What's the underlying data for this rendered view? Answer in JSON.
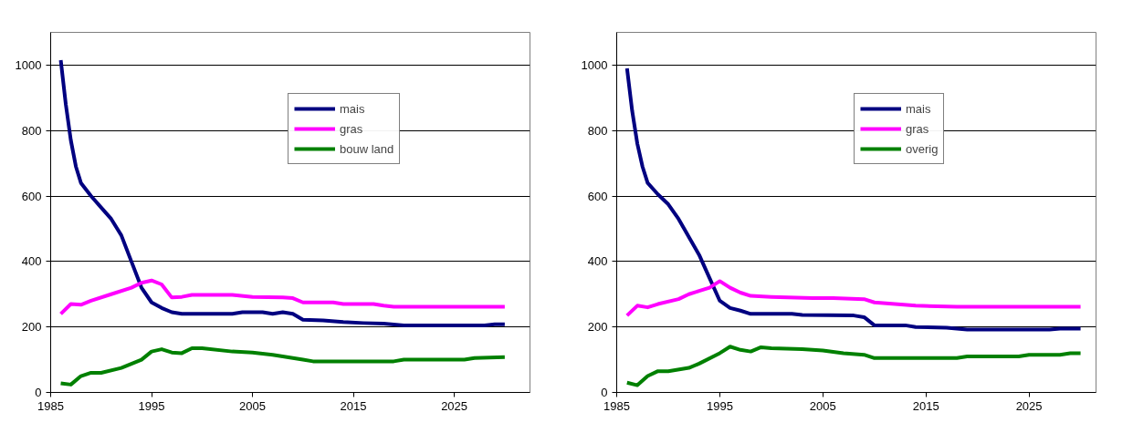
{
  "chart_data": [
    {
      "type": "line",
      "xlim": [
        1985,
        2032.5
      ],
      "xticks": [
        1985,
        1995,
        2005,
        2015,
        2025
      ],
      "ylim": [
        0,
        1100
      ],
      "yticks": [
        0,
        200,
        400,
        600,
        800,
        1000
      ],
      "grid": "y",
      "legend": "top right",
      "series": [
        {
          "name": "mais",
          "color": "#000080",
          "x": [
            1986,
            1986.5,
            1987,
            1987.5,
            1988,
            1989,
            1990,
            1991,
            1992,
            1993,
            1994,
            1995,
            1996,
            1997,
            1998,
            2003,
            2004,
            2006,
            2007,
            2008,
            2009,
            2010,
            2012,
            2014,
            2016,
            2018,
            2020,
            2028,
            2029,
            2030
          ],
          "values": [
            1015,
            880,
            770,
            690,
            640,
            600,
            565,
            530,
            480,
            400,
            320,
            275,
            258,
            245,
            240,
            240,
            245,
            245,
            240,
            245,
            240,
            222,
            220,
            215,
            212,
            210,
            205,
            205,
            208,
            208
          ]
        },
        {
          "name": "gras",
          "color": "#ff00ff",
          "x": [
            1986,
            1987,
            1988,
            1989,
            1991,
            1993,
            1994,
            1995,
            1996,
            1997,
            1998,
            1999,
            2003,
            2005,
            2008,
            2009,
            2010,
            2013,
            2014,
            2017,
            2018,
            2019,
            2030
          ],
          "values": [
            240,
            270,
            268,
            280,
            300,
            320,
            335,
            342,
            330,
            290,
            292,
            298,
            298,
            292,
            290,
            288,
            275,
            275,
            270,
            270,
            265,
            262,
            262
          ]
        },
        {
          "name": "bouw land",
          "color": "#008000",
          "x": [
            1986,
            1987,
            1988,
            1989,
            1990,
            1992,
            1994,
            1995,
            1996,
            1997,
            1998,
            1999,
            2000,
            2003,
            2005,
            2007,
            2009,
            2010,
            2011,
            2019,
            2020,
            2026,
            2027,
            2030
          ],
          "values": [
            28,
            24,
            50,
            60,
            60,
            75,
            100,
            125,
            132,
            122,
            120,
            135,
            135,
            125,
            122,
            115,
            105,
            100,
            95,
            95,
            100,
            100,
            105,
            108
          ]
        }
      ]
    },
    {
      "type": "line",
      "xlim": [
        1985,
        2031.5
      ],
      "xticks": [
        1985,
        1995,
        2005,
        2015,
        2025
      ],
      "ylim": [
        0,
        1100
      ],
      "yticks": [
        0,
        200,
        400,
        600,
        800,
        1000
      ],
      "grid": "y",
      "legend": "top right",
      "series": [
        {
          "name": "mais",
          "color": "#000080",
          "x": [
            1986,
            1986.5,
            1987,
            1987.5,
            1988,
            1989,
            1990,
            1991,
            1992,
            1993,
            1994,
            1995,
            1996,
            1997,
            1998,
            2002,
            2003,
            2008,
            2009,
            2010,
            2013,
            2014,
            2017,
            2018,
            2019,
            2027,
            2028,
            2030
          ],
          "values": [
            990,
            860,
            760,
            690,
            640,
            605,
            575,
            530,
            475,
            420,
            350,
            280,
            258,
            250,
            240,
            240,
            237,
            235,
            230,
            205,
            205,
            200,
            198,
            195,
            192,
            192,
            195,
            195
          ]
        },
        {
          "name": "gras",
          "color": "#ff00ff",
          "x": [
            1986,
            1987,
            1988,
            1989,
            1991,
            1992,
            1993,
            1994,
            1995,
            1996,
            1997,
            1998,
            2000,
            2004,
            2006,
            2009,
            2010,
            2012,
            2014,
            2018,
            2030
          ],
          "values": [
            235,
            265,
            260,
            270,
            285,
            300,
            310,
            320,
            340,
            320,
            305,
            295,
            292,
            288,
            288,
            285,
            275,
            270,
            265,
            262,
            262
          ]
        },
        {
          "name": "overig",
          "color": "#008000",
          "x": [
            1986,
            1987,
            1988,
            1989,
            1990,
            1992,
            1993,
            1995,
            1996,
            1997,
            1998,
            1999,
            2000,
            2003,
            2005,
            2007,
            2009,
            2010,
            2018,
            2019,
            2024,
            2025,
            2028,
            2029,
            2030
          ],
          "values": [
            30,
            22,
            50,
            65,
            65,
            75,
            88,
            120,
            140,
            130,
            125,
            138,
            135,
            132,
            128,
            120,
            115,
            105,
            105,
            110,
            110,
            115,
            115,
            120,
            120
          ]
        }
      ]
    }
  ]
}
